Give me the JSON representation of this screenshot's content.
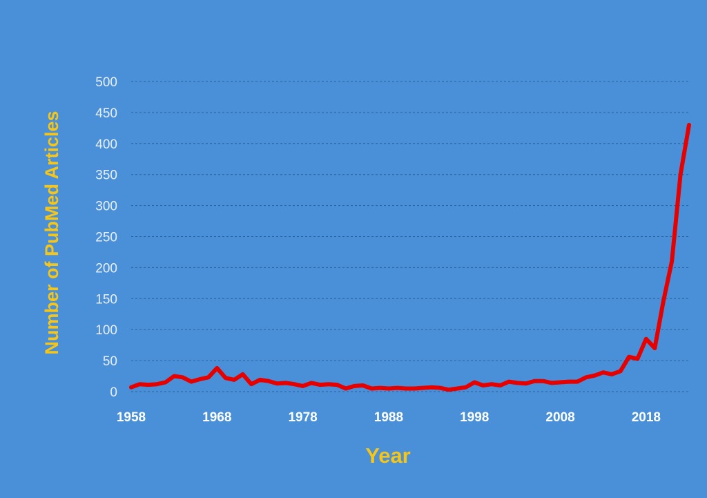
{
  "chart_data": {
    "type": "line",
    "title": "",
    "xlabel": "Year",
    "ylabel": "Number of PubMed Articles",
    "xlim": [
      1958,
      2023
    ],
    "ylim": [
      0,
      500
    ],
    "x_ticks": [
      "1958",
      "1968",
      "1978",
      "1988",
      "1998",
      "2008",
      "2018"
    ],
    "y_ticks": [
      "0",
      "50",
      "100",
      "150",
      "200",
      "250",
      "300",
      "350",
      "400",
      "450",
      "500"
    ],
    "grid": true,
    "colors": {
      "background": "#4a90d9",
      "line": "#e60000",
      "axis_title": "#f5c518",
      "grid": "#2c5f9a"
    },
    "series": [
      {
        "x": [
          1958,
          1959,
          1960,
          1961,
          1962,
          1963,
          1964,
          1965,
          1966,
          1967,
          1968,
          1969,
          1970,
          1971,
          1972,
          1973,
          1974,
          1975,
          1976,
          1977,
          1978,
          1979,
          1980,
          1981,
          1982,
          1983,
          1984,
          1985,
          1986,
          1987,
          1988,
          1989,
          1990,
          1991,
          1992,
          1993,
          1994,
          1995,
          1996,
          1997,
          1998,
          1999,
          2000,
          2001,
          2002,
          2003,
          2004,
          2005,
          2006,
          2007,
          2008,
          2009,
          2010,
          2011,
          2012,
          2013,
          2014,
          2015,
          2016,
          2017,
          2018,
          2019,
          2020,
          2021,
          2022,
          2023
        ],
        "y": [
          7,
          12,
          11,
          12,
          15,
          25,
          23,
          16,
          20,
          23,
          38,
          22,
          19,
          28,
          12,
          19,
          17,
          13,
          14,
          12,
          9,
          14,
          11,
          12,
          11,
          5,
          9,
          10,
          5,
          6,
          5,
          6,
          5,
          5,
          6,
          7,
          6,
          3,
          5,
          7,
          15,
          10,
          12,
          10,
          16,
          14,
          13,
          17,
          17,
          14,
          15,
          16,
          16,
          23,
          26,
          31,
          28,
          33,
          56,
          53,
          85,
          70,
          145,
          210,
          350,
          430
        ]
      }
    ]
  }
}
